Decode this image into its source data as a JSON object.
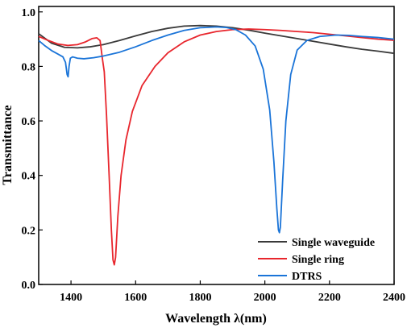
{
  "chart_data": {
    "type": "line",
    "xlabel": "Wavelength λ(nm)",
    "ylabel": "Transmittance",
    "xlim": [
      1300,
      2400
    ],
    "ylim": [
      0.0,
      1.02
    ],
    "xticks": [
      1400,
      1600,
      1800,
      2000,
      2200,
      2400
    ],
    "yticks": [
      0.0,
      0.2,
      0.4,
      0.6,
      0.8,
      1.0
    ],
    "xtick_labels": [
      "1400",
      "1600",
      "1800",
      "2000",
      "2200",
      "2400"
    ],
    "ytick_labels": [
      "0.0",
      "0.2",
      "0.4",
      "0.6",
      "0.8",
      "1.0"
    ],
    "legend_position": "bottom-right",
    "grid": false,
    "series": [
      {
        "name": "Single waveguide",
        "color": "#3a3a3a",
        "points": [
          [
            1300,
            0.92
          ],
          [
            1340,
            0.885
          ],
          [
            1380,
            0.87
          ],
          [
            1420,
            0.868
          ],
          [
            1460,
            0.872
          ],
          [
            1500,
            0.88
          ],
          [
            1550,
            0.895
          ],
          [
            1600,
            0.912
          ],
          [
            1650,
            0.928
          ],
          [
            1700,
            0.94
          ],
          [
            1750,
            0.948
          ],
          [
            1800,
            0.95
          ],
          [
            1850,
            0.948
          ],
          [
            1900,
            0.942
          ],
          [
            1950,
            0.933
          ],
          [
            2000,
            0.922
          ],
          [
            2050,
            0.912
          ],
          [
            2100,
            0.902
          ],
          [
            2150,
            0.892
          ],
          [
            2200,
            0.882
          ],
          [
            2250,
            0.872
          ],
          [
            2300,
            0.863
          ],
          [
            2350,
            0.856
          ],
          [
            2400,
            0.848
          ]
        ]
      },
      {
        "name": "Single ring",
        "color": "#e8262d",
        "points": [
          [
            1300,
            0.91
          ],
          [
            1330,
            0.895
          ],
          [
            1360,
            0.882
          ],
          [
            1390,
            0.877
          ],
          [
            1420,
            0.88
          ],
          [
            1445,
            0.89
          ],
          [
            1465,
            0.902
          ],
          [
            1480,
            0.905
          ],
          [
            1490,
            0.895
          ],
          [
            1497,
            0.83
          ],
          [
            1503,
            0.78
          ],
          [
            1510,
            0.62
          ],
          [
            1518,
            0.4
          ],
          [
            1525,
            0.2
          ],
          [
            1530,
            0.09
          ],
          [
            1534,
            0.072
          ],
          [
            1538,
            0.1
          ],
          [
            1545,
            0.25
          ],
          [
            1555,
            0.4
          ],
          [
            1570,
            0.53
          ],
          [
            1590,
            0.635
          ],
          [
            1620,
            0.73
          ],
          [
            1660,
            0.8
          ],
          [
            1700,
            0.85
          ],
          [
            1750,
            0.89
          ],
          [
            1800,
            0.915
          ],
          [
            1850,
            0.928
          ],
          [
            1900,
            0.935
          ],
          [
            1950,
            0.937
          ],
          [
            2000,
            0.935
          ],
          [
            2050,
            0.932
          ],
          [
            2100,
            0.928
          ],
          [
            2150,
            0.924
          ],
          [
            2200,
            0.918
          ],
          [
            2250,
            0.912
          ],
          [
            2300,
            0.906
          ],
          [
            2350,
            0.9
          ],
          [
            2400,
            0.896
          ]
        ]
      },
      {
        "name": "DTRS",
        "color": "#1a74d8",
        "points": [
          [
            1300,
            0.895
          ],
          [
            1320,
            0.875
          ],
          [
            1340,
            0.858
          ],
          [
            1360,
            0.845
          ],
          [
            1375,
            0.835
          ],
          [
            1383,
            0.815
          ],
          [
            1388,
            0.77
          ],
          [
            1391,
            0.762
          ],
          [
            1394,
            0.8
          ],
          [
            1398,
            0.83
          ],
          [
            1405,
            0.835
          ],
          [
            1420,
            0.83
          ],
          [
            1440,
            0.828
          ],
          [
            1470,
            0.832
          ],
          [
            1500,
            0.838
          ],
          [
            1550,
            0.852
          ],
          [
            1600,
            0.872
          ],
          [
            1650,
            0.895
          ],
          [
            1700,
            0.915
          ],
          [
            1750,
            0.932
          ],
          [
            1800,
            0.942
          ],
          [
            1850,
            0.945
          ],
          [
            1880,
            0.943
          ],
          [
            1910,
            0.935
          ],
          [
            1940,
            0.915
          ],
          [
            1970,
            0.875
          ],
          [
            1995,
            0.79
          ],
          [
            2015,
            0.64
          ],
          [
            2028,
            0.45
          ],
          [
            2037,
            0.28
          ],
          [
            2042,
            0.2
          ],
          [
            2045,
            0.19
          ],
          [
            2048,
            0.21
          ],
          [
            2055,
            0.38
          ],
          [
            2065,
            0.6
          ],
          [
            2080,
            0.77
          ],
          [
            2100,
            0.86
          ],
          [
            2130,
            0.895
          ],
          [
            2170,
            0.91
          ],
          [
            2220,
            0.915
          ],
          [
            2260,
            0.914
          ],
          [
            2300,
            0.91
          ],
          [
            2350,
            0.906
          ],
          [
            2400,
            0.9
          ]
        ]
      }
    ]
  }
}
